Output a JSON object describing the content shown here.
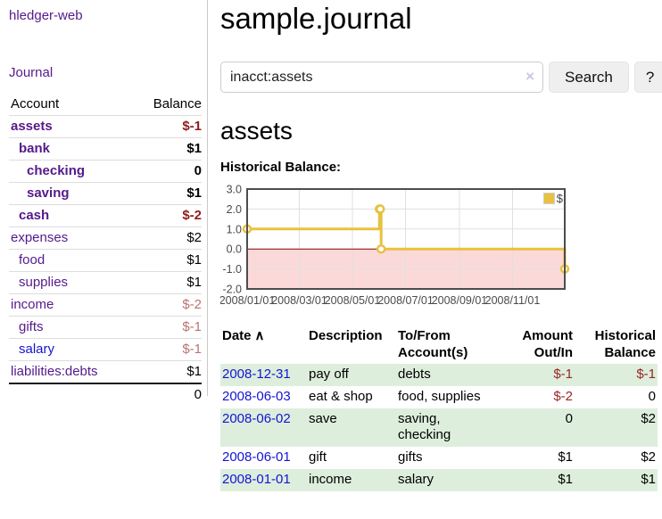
{
  "sidebar": {
    "brand": "hledger-web",
    "nav": {
      "journal": "Journal"
    },
    "accounts_table": {
      "headers": {
        "account": "Account",
        "balance": "Balance"
      },
      "rows": [
        {
          "name": "assets",
          "indent": 1,
          "bold": true,
          "balance": "$-1",
          "negative": "strong",
          "link_style": "purple"
        },
        {
          "name": "bank",
          "indent": 2,
          "bold": true,
          "balance": "$1",
          "negative": "none",
          "link_style": "purple"
        },
        {
          "name": "checking",
          "indent": 3,
          "bold": true,
          "balance": "0",
          "negative": "none",
          "link_style": "purple"
        },
        {
          "name": "saving",
          "indent": 3,
          "bold": true,
          "balance": "$1",
          "negative": "none",
          "link_style": "purple"
        },
        {
          "name": "cash",
          "indent": 2,
          "bold": true,
          "balance": "$-2",
          "negative": "strong",
          "link_style": "purple"
        },
        {
          "name": "expenses",
          "indent": 1,
          "bold": false,
          "balance": "$2",
          "negative": "none",
          "link_style": "purple"
        },
        {
          "name": "food",
          "indent": 2,
          "bold": false,
          "balance": "$1",
          "negative": "none",
          "link_style": "purple"
        },
        {
          "name": "supplies",
          "indent": 2,
          "bold": false,
          "balance": "$1",
          "negative": "none",
          "link_style": "purple"
        },
        {
          "name": "income",
          "indent": 1,
          "bold": false,
          "balance": "$-2",
          "negative": "soft",
          "link_style": "purple"
        },
        {
          "name": "gifts",
          "indent": 2,
          "bold": false,
          "balance": "$-1",
          "negative": "soft",
          "link_style": "purple"
        },
        {
          "name": "salary",
          "indent": 2,
          "bold": false,
          "balance": "$-1",
          "negative": "soft",
          "link_style": "blue"
        },
        {
          "name": "liabilities:debts",
          "indent": 1,
          "bold": false,
          "balance": "$1",
          "negative": "none",
          "link_style": "purple"
        }
      ],
      "total": "0"
    }
  },
  "header": {
    "title": "sample.journal"
  },
  "search": {
    "query": "inacct:assets",
    "clear_icon": "×",
    "button": "Search",
    "help_button": "?"
  },
  "account_page": {
    "heading": "assets",
    "chart_label": "Historical Balance:"
  },
  "chart_data": {
    "type": "line",
    "title": "Historical Balance:",
    "interpolation": "step-after",
    "series": [
      {
        "name": "$",
        "color": "#E8C13F",
        "points": [
          [
            "2008-01-01",
            1
          ],
          [
            "2008-06-01",
            2
          ],
          [
            "2008-06-02",
            2
          ],
          [
            "2008-06-03",
            0
          ],
          [
            "2008-12-31",
            -1
          ]
        ]
      }
    ],
    "x_range": [
      "2008-01-01",
      "2008-12-31"
    ],
    "y_range": [
      -2,
      3
    ],
    "y_ticks": [
      3,
      2,
      1,
      0,
      -1,
      -2
    ],
    "x_ticks": [
      "2008/01/01",
      "2008/03/01",
      "2008/05/01",
      "2008/07/01",
      "2008/09/01",
      "2008/11/01"
    ],
    "x_tick_dates": [
      "2008-01-01",
      "2008-03-01",
      "2008-05-01",
      "2008-07-01",
      "2008-09-01",
      "2008-11-01"
    ],
    "legend": {
      "label": "$",
      "position": "top-right"
    },
    "grid": true,
    "negative_region_fill": "#FBD9D9",
    "zero_line_color": "#8B0000"
  },
  "register": {
    "columns": [
      "Date",
      "Description",
      "To/From Account(s)",
      "Amount Out/In",
      "Historical Balance"
    ],
    "sort_indicator": "∧",
    "rows": [
      {
        "date": "2008-12-31",
        "description": "pay off",
        "accounts": "debts",
        "amount": "$-1",
        "amount_neg": true,
        "balance": "$-1",
        "balance_neg": true
      },
      {
        "date": "2008-06-03",
        "description": "eat & shop",
        "accounts": "food, supplies",
        "amount": "$-2",
        "amount_neg": true,
        "balance": "0",
        "balance_neg": false
      },
      {
        "date": "2008-06-02",
        "description": "save",
        "accounts": "saving, checking",
        "amount": "0",
        "amount_neg": false,
        "balance": "$2",
        "balance_neg": false
      },
      {
        "date": "2008-06-01",
        "description": "gift",
        "accounts": "gifts",
        "amount": "$1",
        "amount_neg": false,
        "balance": "$2",
        "balance_neg": false
      },
      {
        "date": "2008-01-01",
        "description": "income",
        "accounts": "salary",
        "amount": "$1",
        "amount_neg": false,
        "balance": "$1",
        "balance_neg": false
      }
    ]
  },
  "colors": {
    "link_purple": "#551a8b",
    "link_blue": "#1414d2",
    "negative_strong": "#8f1d1d",
    "negative_soft": "#bc7272",
    "negative_table": "#9c2424",
    "row_stripe_green": "#ddeedd",
    "chart_line_gold": "#E8C13F",
    "chart_negative_fill": "#FBD9D9",
    "chart_zero_line": "#8B0000"
  }
}
